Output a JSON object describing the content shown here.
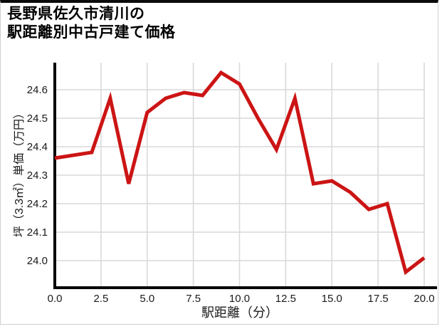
{
  "title": {
    "line1": "長野県佐久市清川の",
    "line2": "駅距離別中古戸建て価格"
  },
  "chart_data": {
    "type": "line",
    "title": "長野県佐久市清川の駅距離別中古戸建て価格",
    "xlabel": "駅距離（分）",
    "ylabel": "坪（3.3㎡）単価（万円）",
    "x": [
      0,
      1,
      2,
      3,
      4,
      5,
      6,
      7,
      8,
      9,
      10,
      11,
      12,
      13,
      14,
      15,
      16,
      17,
      18,
      19,
      20
    ],
    "values": [
      24.36,
      24.37,
      24.38,
      24.57,
      24.27,
      24.52,
      24.57,
      24.59,
      24.58,
      24.66,
      24.62,
      24.5,
      24.39,
      24.57,
      24.27,
      24.28,
      24.24,
      24.18,
      24.2,
      23.96,
      24.01
    ],
    "xticks": [
      "0.0",
      "2.5",
      "5.0",
      "7.5",
      "10.0",
      "12.5",
      "15.0",
      "17.5",
      "20.0"
    ],
    "yticks": [
      "24.0",
      "24.1",
      "24.2",
      "24.3",
      "24.4",
      "24.5",
      "24.6"
    ],
    "xlim": [
      0,
      20
    ],
    "ylim": [
      23.9,
      24.7
    ],
    "grid": true,
    "legend": false,
    "line_color": "#cc1414",
    "grid_color": "#d9d9d9",
    "axis_color": "#000000",
    "tick_color": "#1a1a1a"
  }
}
